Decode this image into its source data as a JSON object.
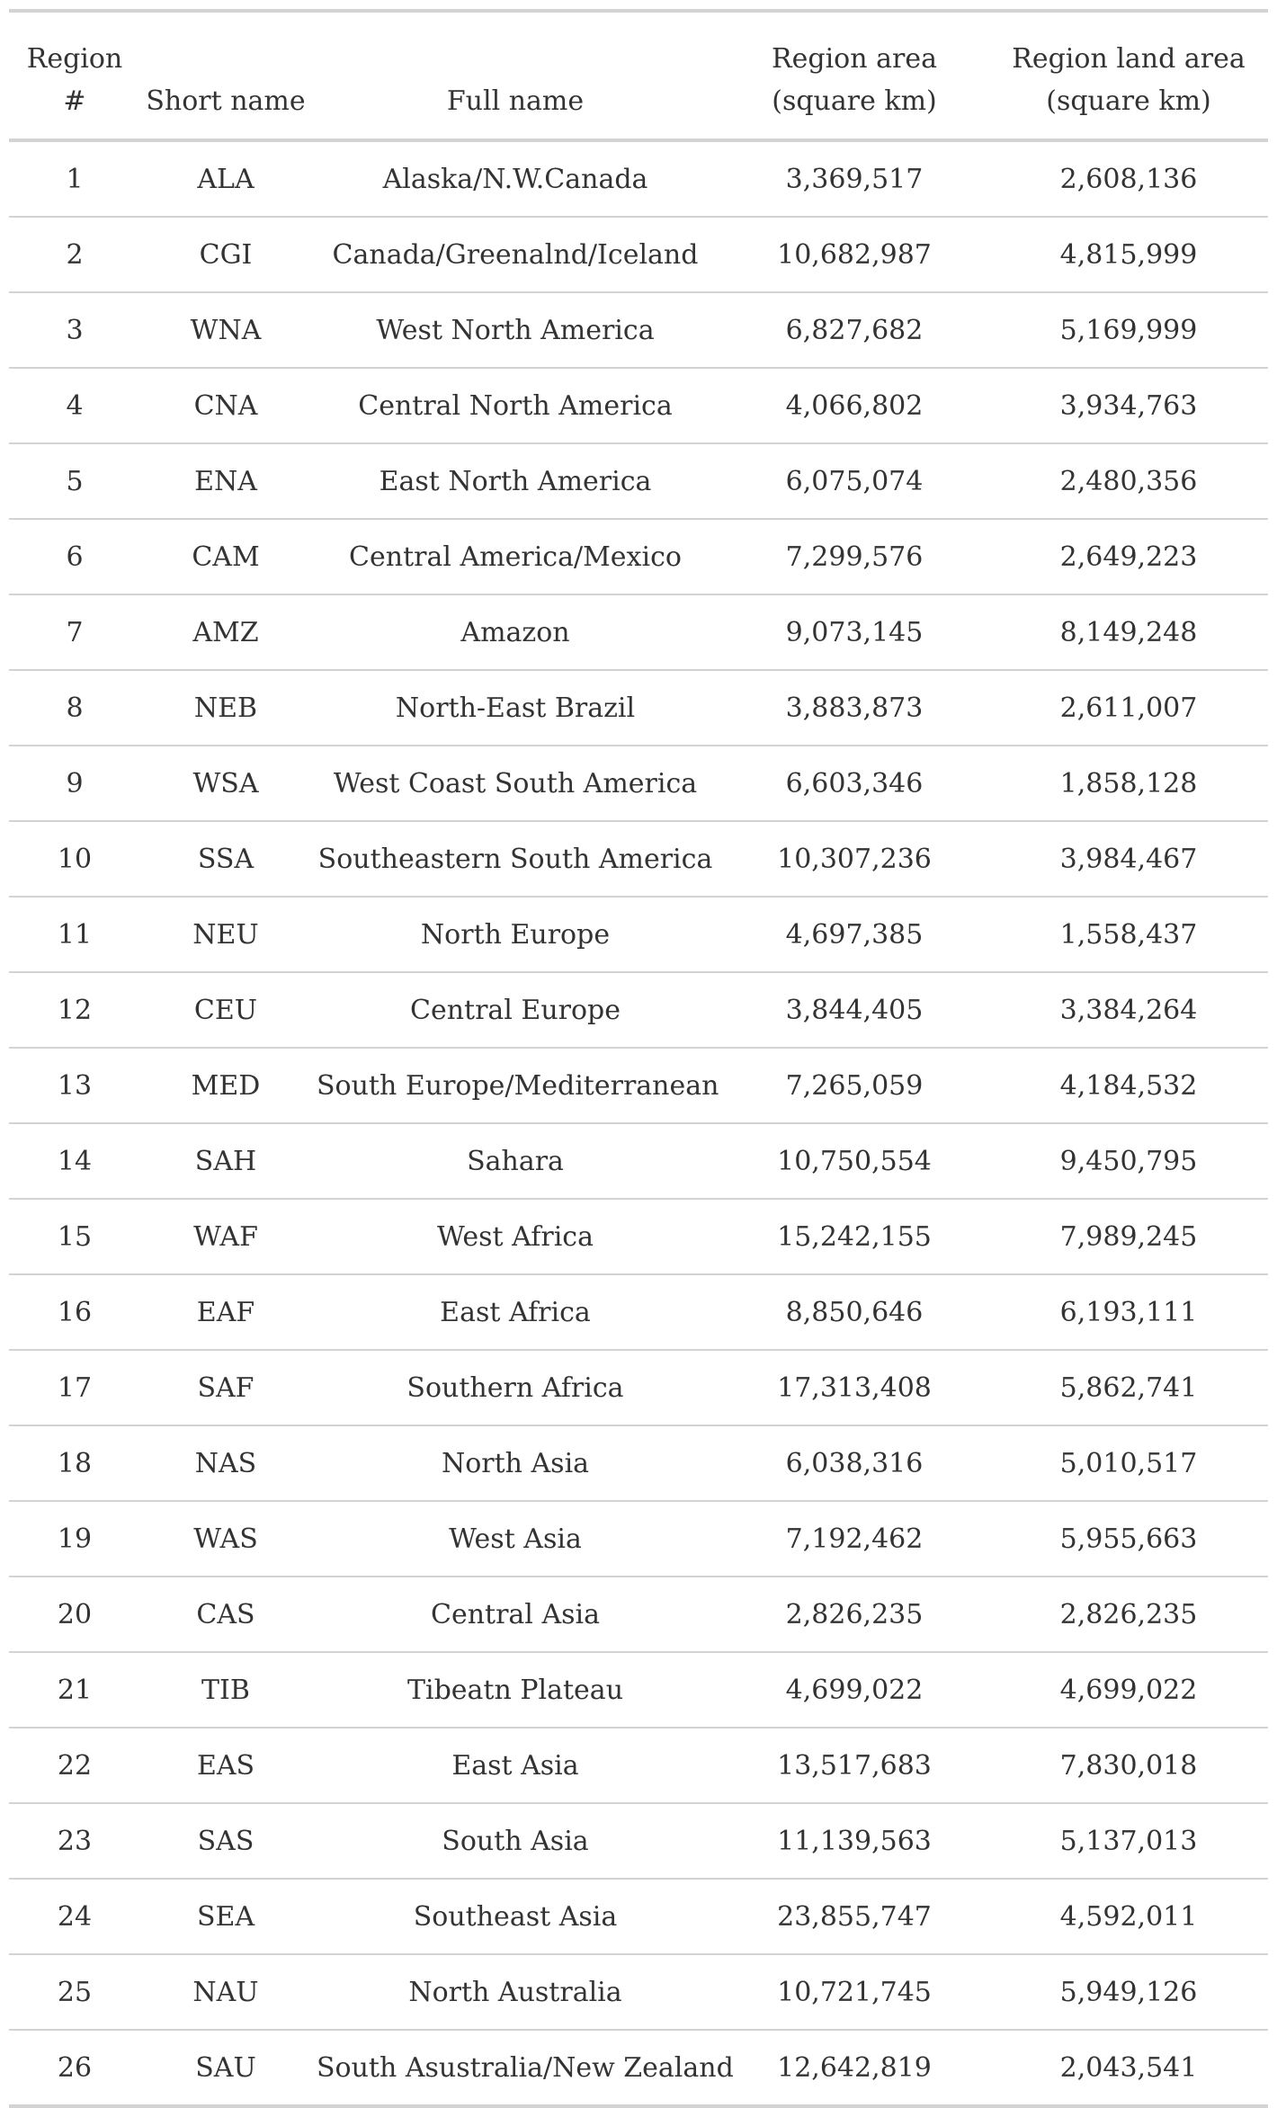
{
  "table": {
    "columns": [
      "Region #",
      "Short name",
      "Full name",
      "Region area (square km)",
      "Region land area (square km)"
    ],
    "rows": [
      [
        "1",
        "ALA",
        "Alaska/N.W.Canada",
        "3,369,517",
        "2,608,136"
      ],
      [
        "2",
        "CGI",
        "Canada/Greenalnd/Iceland",
        "10,682,987",
        "4,815,999"
      ],
      [
        "3",
        "WNA",
        "West North America",
        "6,827,682",
        "5,169,999"
      ],
      [
        "4",
        "CNA",
        "Central North America",
        "4,066,802",
        "3,934,763"
      ],
      [
        "5",
        "ENA",
        "East North America",
        "6,075,074",
        "2,480,356"
      ],
      [
        "6",
        "CAM",
        "Central America/Mexico",
        "7,299,576",
        "2,649,223"
      ],
      [
        "7",
        "AMZ",
        "Amazon",
        "9,073,145",
        "8,149,248"
      ],
      [
        "8",
        "NEB",
        "North-East Brazil",
        "3,883,873",
        "2,611,007"
      ],
      [
        "9",
        "WSA",
        "West Coast South America",
        "6,603,346",
        "1,858,128"
      ],
      [
        "10",
        "SSA",
        "Southeastern South America",
        "10,307,236",
        "3,984,467"
      ],
      [
        "11",
        "NEU",
        "North Europe",
        "4,697,385",
        "1,558,437"
      ],
      [
        "12",
        "CEU",
        "Central Europe",
        "3,844,405",
        "3,384,264"
      ],
      [
        "13",
        "MED",
        "South Europe/Mediterranean",
        "7,265,059",
        "4,184,532"
      ],
      [
        "14",
        "SAH",
        "Sahara",
        "10,750,554",
        "9,450,795"
      ],
      [
        "15",
        "WAF",
        "West Africa",
        "15,242,155",
        "7,989,245"
      ],
      [
        "16",
        "EAF",
        "East Africa",
        "8,850,646",
        "6,193,111"
      ],
      [
        "17",
        "SAF",
        "Southern Africa",
        "17,313,408",
        "5,862,741"
      ],
      [
        "18",
        "NAS",
        "North Asia",
        "6,038,316",
        "5,010,517"
      ],
      [
        "19",
        "WAS",
        "West Asia",
        "7,192,462",
        "5,955,663"
      ],
      [
        "20",
        "CAS",
        "Central Asia",
        "2,826,235",
        "2,826,235"
      ],
      [
        "21",
        "TIB",
        "Tibeatn Plateau",
        "4,699,022",
        "4,699,022"
      ],
      [
        "22",
        "EAS",
        "East Asia",
        "13,517,683",
        "7,830,018"
      ],
      [
        "23",
        "SAS",
        "South Asia",
        "11,139,563",
        "5,137,013"
      ],
      [
        "24",
        "SEA",
        "Southeast Asia",
        "23,855,747",
        "4,592,011"
      ],
      [
        "25",
        "NAU",
        "North Australia",
        "10,721,745",
        "5,949,126"
      ],
      [
        "26",
        "SAU",
        "South Asustralia/New Zealand",
        "12,642,819",
        "2,043,541"
      ]
    ]
  }
}
